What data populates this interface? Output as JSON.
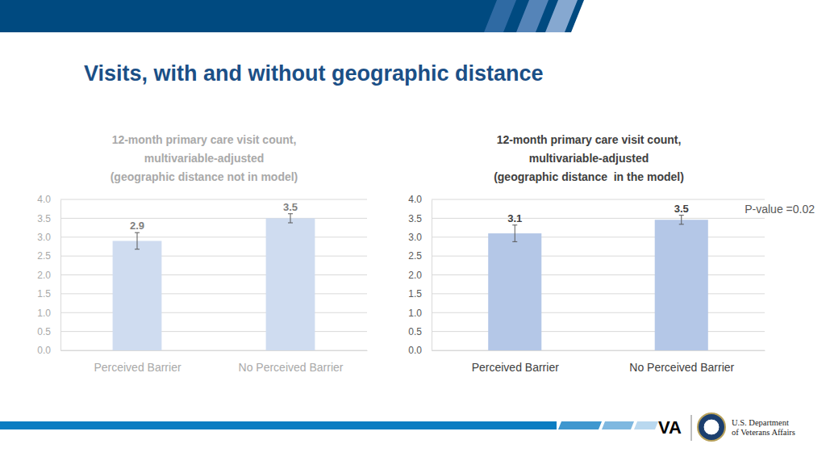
{
  "page": {
    "title": "Visits, with and without geographic distance",
    "logo_text": "VA",
    "agency": [
      "U.S. Department",
      "of Veterans Affairs"
    ]
  },
  "chart_data": [
    {
      "type": "bar",
      "title": [
        "12-month primary care visit count,",
        "multivariable-adjusted",
        "(geographic distance not in model)"
      ],
      "categories": [
        "Perceived Barrier",
        "No Perceived Barrier"
      ],
      "values": [
        2.9,
        3.5
      ],
      "errors": [
        0.22,
        0.12
      ],
      "color": "#cfdcf0",
      "ylim": [
        0,
        4
      ],
      "yticks": [
        {
          "value": 0,
          "label": "0.0"
        },
        0.5,
        {
          "value": 1,
          "label": "1.0"
        },
        1.5,
        {
          "value": 2,
          "label": "2.0"
        },
        2.5,
        {
          "value": 3,
          "label": "3.0"
        },
        3.5,
        {
          "value": 4,
          "label": "4.0"
        }
      ],
      "grid": true,
      "data_labels": true
    },
    {
      "type": "bar",
      "title": [
        "12-month primary care visit count,",
        "multivariable-adjusted",
        "(geographic distance  in the model)"
      ],
      "categories": [
        "Perceived Barrier",
        "No Perceived Barrier"
      ],
      "values": [
        3.1,
        3.46
      ],
      "value_labels": [
        "3.1",
        "3.5"
      ],
      "errors": [
        0.22,
        0.12
      ],
      "color": "#b4c7e7",
      "ylim": [
        0,
        4
      ],
      "yticks": [
        {
          "value": 0,
          "label": "0.0"
        },
        0.5,
        {
          "value": 1,
          "label": "1.0"
        },
        1.5,
        {
          "value": 2,
          "label": "2.0"
        },
        2.5,
        {
          "value": 3,
          "label": "3.0"
        },
        3.5,
        {
          "value": 4,
          "label": "4.0"
        }
      ],
      "grid": true,
      "data_labels": true,
      "annotations": [
        "P-value =0.02"
      ]
    }
  ]
}
